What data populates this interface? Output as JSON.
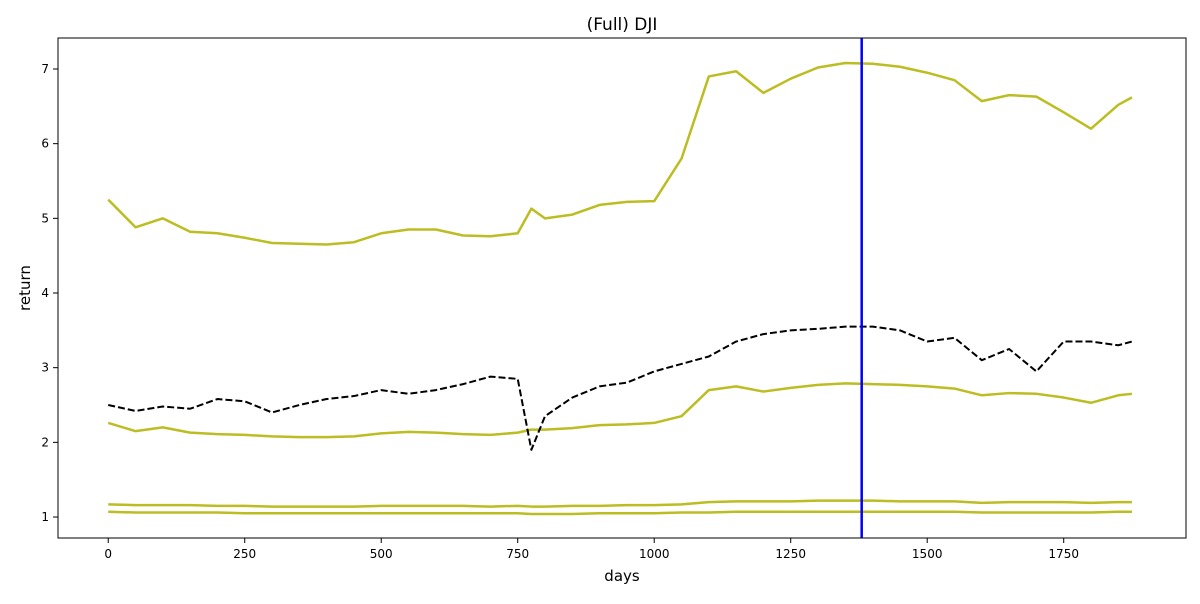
{
  "chart_data": {
    "type": "line",
    "title": "(Full) DJI",
    "x_label": "days",
    "y_label": "return",
    "x": [
      0,
      50,
      100,
      150,
      200,
      250,
      300,
      350,
      400,
      450,
      500,
      550,
      600,
      650,
      700,
      750,
      775,
      800,
      850,
      900,
      950,
      1000,
      1050,
      1100,
      1150,
      1200,
      1250,
      1300,
      1350,
      1400,
      1450,
      1500,
      1550,
      1600,
      1650,
      1700,
      1750,
      1800,
      1850,
      1875
    ],
    "series": [
      {
        "color": "#bcbd22",
        "values": [
          5.25,
          4.88,
          5.0,
          4.82,
          4.8,
          4.74,
          4.67,
          4.66,
          4.65,
          4.68,
          4.8,
          4.85,
          4.85,
          4.77,
          4.76,
          4.8,
          5.13,
          5.0,
          5.05,
          5.18,
          5.22,
          5.23,
          5.8,
          6.9,
          6.97,
          6.68,
          6.87,
          7.02,
          7.08,
          7.07,
          7.03,
          6.95,
          6.85,
          6.57,
          6.65,
          6.63,
          6.42,
          6.2,
          6.52,
          6.62
        ]
      },
      {
        "color": "#bcbd22",
        "values": [
          2.26,
          2.15,
          2.2,
          2.13,
          2.11,
          2.1,
          2.08,
          2.07,
          2.07,
          2.08,
          2.12,
          2.14,
          2.13,
          2.11,
          2.1,
          2.13,
          2.17,
          2.17,
          2.19,
          2.23,
          2.24,
          2.26,
          2.35,
          2.7,
          2.75,
          2.68,
          2.73,
          2.77,
          2.79,
          2.78,
          2.77,
          2.75,
          2.72,
          2.63,
          2.66,
          2.65,
          2.6,
          2.53,
          2.63,
          2.65
        ]
      },
      {
        "color": "#bcbd22",
        "values": [
          1.17,
          1.16,
          1.16,
          1.16,
          1.15,
          1.15,
          1.14,
          1.14,
          1.14,
          1.14,
          1.15,
          1.15,
          1.15,
          1.15,
          1.14,
          1.15,
          1.14,
          1.14,
          1.15,
          1.15,
          1.16,
          1.16,
          1.17,
          1.2,
          1.21,
          1.21,
          1.21,
          1.22,
          1.22,
          1.22,
          1.21,
          1.21,
          1.21,
          1.19,
          1.2,
          1.2,
          1.2,
          1.19,
          1.2,
          1.2
        ]
      },
      {
        "color": "#bcbd22",
        "values": [
          1.07,
          1.06,
          1.06,
          1.06,
          1.06,
          1.05,
          1.05,
          1.05,
          1.05,
          1.05,
          1.05,
          1.05,
          1.05,
          1.05,
          1.05,
          1.05,
          1.04,
          1.04,
          1.04,
          1.05,
          1.05,
          1.05,
          1.06,
          1.06,
          1.07,
          1.07,
          1.07,
          1.07,
          1.07,
          1.07,
          1.07,
          1.07,
          1.07,
          1.06,
          1.06,
          1.06,
          1.06,
          1.06,
          1.07,
          1.07
        ]
      },
      {
        "color": "#000000",
        "dashed": true,
        "values": [
          2.5,
          2.42,
          2.48,
          2.45,
          2.58,
          2.55,
          2.4,
          2.5,
          2.58,
          2.62,
          2.7,
          2.65,
          2.7,
          2.78,
          2.88,
          2.85,
          1.9,
          2.35,
          2.6,
          2.75,
          2.8,
          2.95,
          3.05,
          3.15,
          3.35,
          3.45,
          3.5,
          3.52,
          3.55,
          3.55,
          3.5,
          3.35,
          3.4,
          3.1,
          3.25,
          2.95,
          3.35,
          3.35,
          3.3,
          3.35
        ]
      }
    ],
    "vline": 1380,
    "vline_color": "#0000ff",
    "xlim": [
      -92,
      1974
    ],
    "ylim": [
      0.719,
      7.415
    ],
    "xticks": [
      0,
      250,
      500,
      750,
      1000,
      1250,
      1500,
      1750
    ],
    "yticks": [
      1,
      2,
      3,
      4,
      5,
      6,
      7
    ],
    "grid": false
  }
}
